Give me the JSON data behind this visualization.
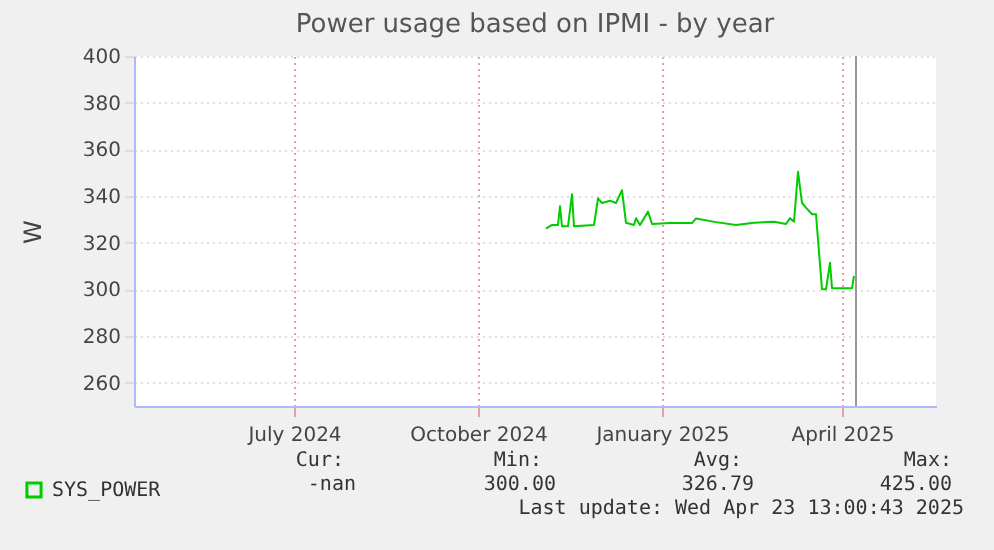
{
  "chart_data": {
    "type": "line",
    "title": "Power usage based on IPMI - by year",
    "ylabel": "W",
    "x": [
      "2024-11-19",
      "2024-11-22",
      "2024-11-25",
      "2024-11-26",
      "2024-11-27",
      "2024-11-30",
      "2024-12-02",
      "2024-12-03",
      "2024-12-13",
      "2024-12-15",
      "2024-12-17",
      "2024-12-21",
      "2024-12-24",
      "2024-12-27",
      "2024-12-29",
      "2025-01-02",
      "2025-01-03",
      "2025-01-05",
      "2025-01-09",
      "2025-01-11",
      "2025-01-20",
      "2025-01-31",
      "2025-02-02",
      "2025-02-12",
      "2025-02-22",
      "2025-03-03",
      "2025-03-13",
      "2025-03-19",
      "2025-03-21",
      "2025-03-23",
      "2025-03-25",
      "2025-03-27",
      "2025-03-29",
      "2025-04-01",
      "2025-04-03",
      "2025-04-04",
      "2025-04-06",
      "2025-04-08",
      "2025-04-10",
      "2025-04-11",
      "2025-04-21",
      "2025-04-22"
    ],
    "series": [
      {
        "name": "SYS_POWER",
        "color": "#00cc00",
        "values": [
          326,
          327.6,
          327.6,
          335.6,
          327,
          327,
          340.8,
          327,
          327.6,
          339,
          337,
          338,
          337,
          342.5,
          328.5,
          327.6,
          330.5,
          327.6,
          333.3,
          328,
          328.4,
          328.4,
          330.4,
          328.8,
          327.6,
          328.5,
          329,
          328,
          330.5,
          329,
          350.4,
          337,
          335,
          332.2,
          332.2,
          321.4,
          300,
          300,
          311.4,
          300.5,
          300.5,
          305.7
        ]
      }
    ],
    "xlim": [
      "2024-04-27",
      "2025-06-02"
    ],
    "xticks": [
      {
        "value": "2024-07-16",
        "label": "July 2024"
      },
      {
        "value": "2024-10-16",
        "label": "October 2024"
      },
      {
        "value": "2025-01-16",
        "label": "January 2025"
      },
      {
        "value": "2025-04-16",
        "label": "April 2025"
      }
    ],
    "ylim": [
      250,
      400
    ],
    "yticks": [
      260,
      280,
      300,
      320,
      340,
      360,
      380,
      400
    ],
    "grid": true,
    "legend": "bottom",
    "marker": "none",
    "line_style": "solid",
    "ref_lines": [
      {
        "axis": "x",
        "value": "2025-04-23",
        "color": "#999999"
      }
    ],
    "annotations": [
      "Cur:",
      "Min:",
      "Avg:",
      "Max:",
      "-nan",
      "300.00",
      "326.79",
      "425.00",
      "Last update: Wed Apr 23 13:00:43 2025"
    ]
  }
}
